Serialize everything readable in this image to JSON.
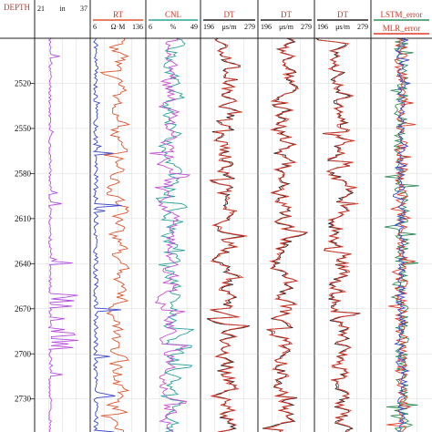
{
  "chart_data": {
    "type": "line",
    "depth_label": "DEPTH",
    "depth_range": [
      2490,
      2752
    ],
    "depth_ticks": [
      2520,
      2550,
      2580,
      2610,
      2640,
      2670,
      2700,
      2730
    ],
    "tracks": [
      {
        "name": "",
        "unit": "in",
        "scale_min": "21",
        "scale_max": "37",
        "curves": [
          {
            "color": "#b64fe0",
            "kind": "caliper",
            "seed": 11,
            "base": 0.28
          }
        ]
      },
      {
        "name": "RT",
        "unit": "Ω·M",
        "scale_min": "6",
        "scale_max": "136",
        "curves": [
          {
            "color": "#e0552e",
            "kind": "swing",
            "seed": 23,
            "base": 0.5,
            "amp": 0.3
          },
          {
            "color": "#3b48c8",
            "kind": "low",
            "seed": 31,
            "base": 0.1,
            "amp": 0.08
          }
        ]
      },
      {
        "name": "CNL",
        "unit": "%",
        "scale_min": "6",
        "scale_max": "49",
        "curves": [
          {
            "color": "#2aa39a",
            "kind": "swing",
            "seed": 43,
            "base": 0.5,
            "amp": 0.32
          },
          {
            "color": "#c64fd6",
            "kind": "swing",
            "seed": 47,
            "base": 0.42,
            "amp": 0.3
          }
        ]
      },
      {
        "name": "DT",
        "unit": "μs/m",
        "scale_min": "196",
        "scale_max": "279",
        "curves": [
          {
            "color": "#222222",
            "kind": "swing",
            "seed": 53,
            "base": 0.45,
            "amp": 0.33
          },
          {
            "color": "#e03a2a",
            "kind": "follow",
            "seed": 59,
            "base": 0.45,
            "amp": 0.33
          }
        ]
      },
      {
        "name": "DT",
        "unit": "μs/m",
        "scale_min": "196",
        "scale_max": "279",
        "curves": [
          {
            "color": "#222222",
            "kind": "swing",
            "seed": 61,
            "base": 0.45,
            "amp": 0.33
          },
          {
            "color": "#e03a2a",
            "kind": "follow",
            "seed": 67,
            "base": 0.45,
            "amp": 0.33
          }
        ]
      },
      {
        "name": "DT",
        "unit": "μs/m",
        "scale_min": "196",
        "scale_max": "279",
        "curves": [
          {
            "color": "#222222",
            "kind": "swing",
            "seed": 71,
            "base": 0.45,
            "amp": 0.33
          },
          {
            "color": "#e03a2a",
            "kind": "follow",
            "seed": 73,
            "base": 0.45,
            "amp": 0.33
          }
        ]
      },
      {
        "name": "LSTM_error",
        "name2": "MLR_error",
        "unit": "",
        "scale_min": "",
        "scale_max": "",
        "curves": [
          {
            "color": "#2e8b57",
            "kind": "error",
            "seed": 79,
            "base": 0.5,
            "amp": 0.12
          },
          {
            "color": "#e03a2a",
            "kind": "error",
            "seed": 83,
            "base": 0.5,
            "amp": 0.1
          },
          {
            "color": "#3b48c8",
            "kind": "error",
            "seed": 89,
            "base": 0.5,
            "amp": 0.06
          }
        ]
      }
    ]
  }
}
